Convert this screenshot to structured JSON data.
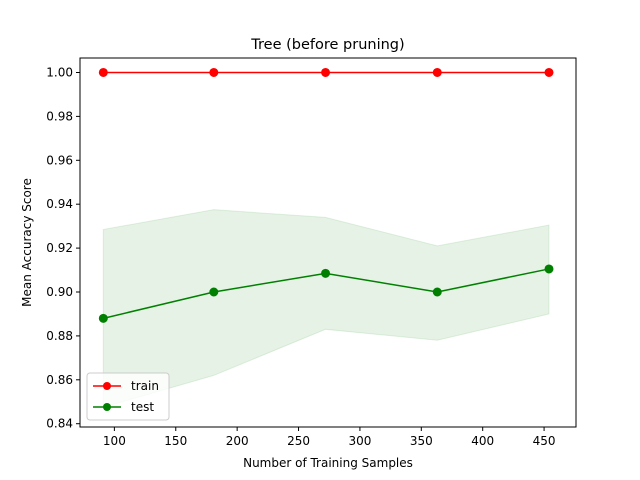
{
  "chart_data": {
    "type": "line",
    "title": "Tree (before pruning)",
    "xlabel": "Number of Training Samples",
    "ylabel": "Mean Accuracy Score",
    "xlim": [
      72,
      476
    ],
    "ylim": [
      0.8385,
      1.0066
    ],
    "xticks": [
      100,
      150,
      200,
      250,
      300,
      350,
      400,
      450
    ],
    "yticks": [
      0.84,
      0.86,
      0.88,
      0.9,
      0.92,
      0.94,
      0.96,
      0.98,
      1.0
    ],
    "yticklabels": [
      "0.84",
      "0.86",
      "0.88",
      "0.90",
      "0.92",
      "0.94",
      "0.96",
      "0.98",
      "1.00"
    ],
    "x": [
      91,
      181,
      272,
      363,
      454
    ],
    "series": [
      {
        "name": "train",
        "color": "#ff0000",
        "values": [
          1.0,
          1.0,
          1.0,
          1.0,
          1.0
        ]
      },
      {
        "name": "test",
        "color": "#008000",
        "values": [
          0.888,
          0.9,
          0.9085,
          0.9,
          0.9105
        ],
        "band_upper": [
          0.9285,
          0.9375,
          0.934,
          0.921,
          0.9305
        ],
        "band_lower": [
          0.8475,
          0.862,
          0.883,
          0.878,
          0.89
        ],
        "band_color": "#008000"
      }
    ],
    "grid": false,
    "legend": [
      "train",
      "test"
    ],
    "legend_position": "lower-left"
  }
}
